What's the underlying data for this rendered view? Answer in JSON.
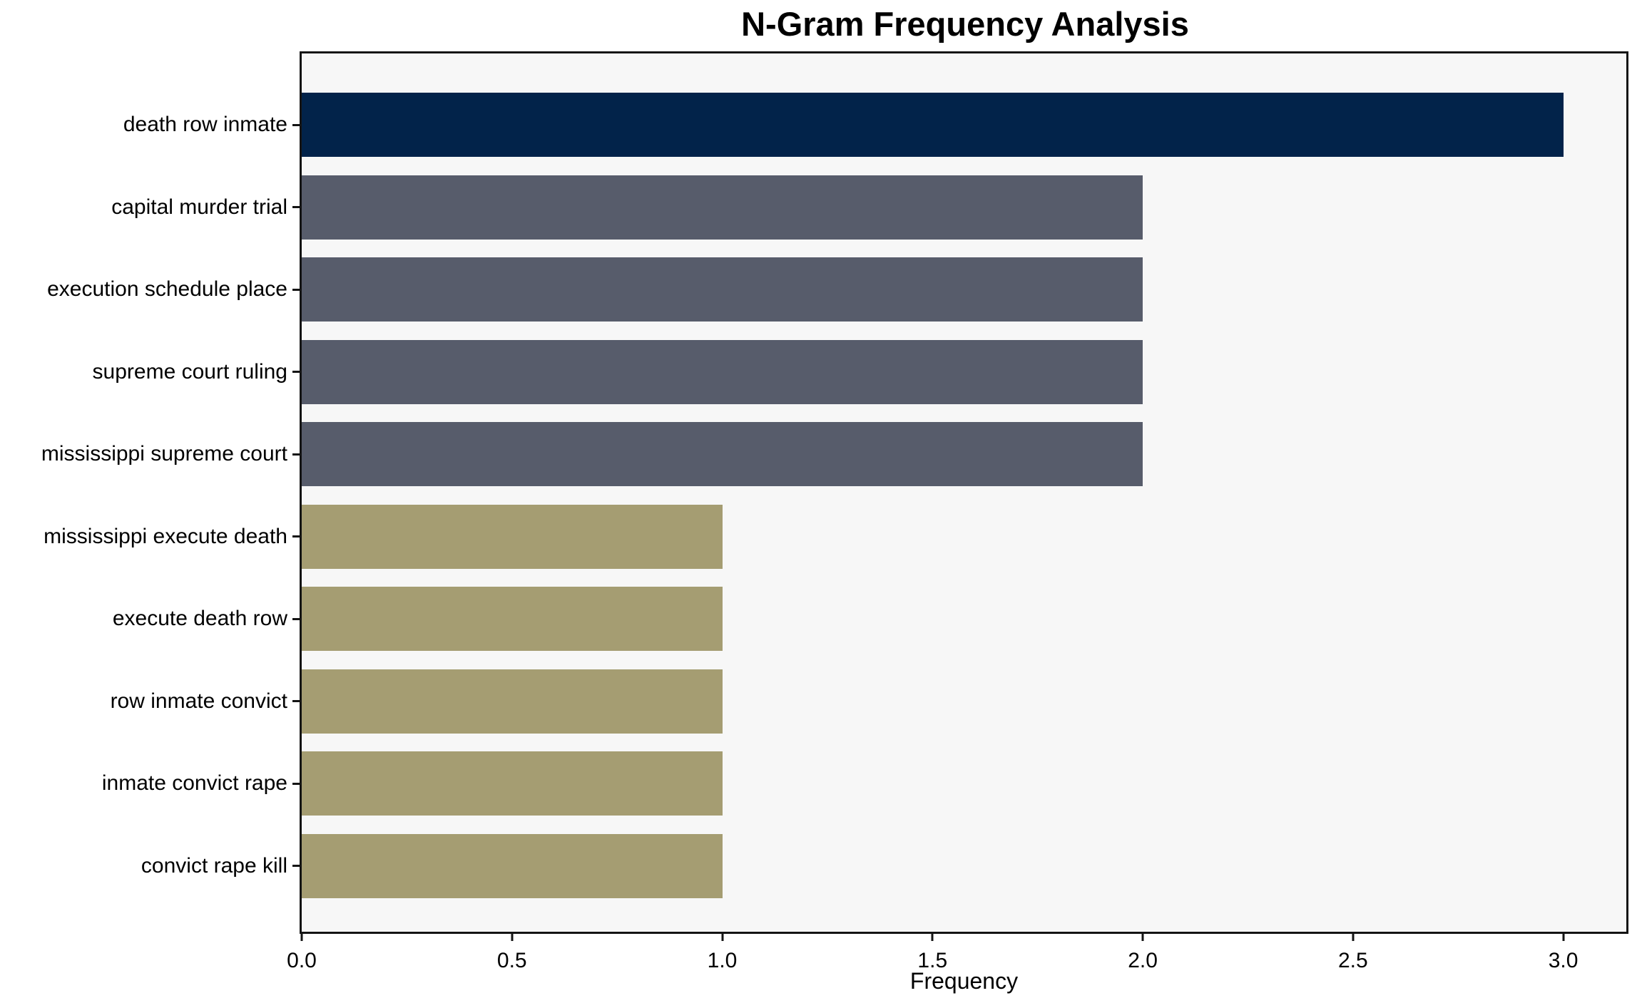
{
  "chart_data": {
    "type": "bar",
    "orientation": "horizontal",
    "title": "N-Gram Frequency Analysis",
    "xlabel": "Frequency",
    "ylabel": "",
    "categories": [
      "death row inmate",
      "capital murder trial",
      "execution schedule place",
      "supreme court ruling",
      "mississippi supreme court",
      "mississippi execute death",
      "execute death row",
      "row inmate convict",
      "inmate convict rape",
      "convict rape kill"
    ],
    "values": [
      3,
      2,
      2,
      2,
      2,
      1,
      1,
      1,
      1,
      1
    ],
    "bar_colors": [
      "#02234a",
      "#575c6b",
      "#575c6b",
      "#575c6b",
      "#575c6b",
      "#a59d72",
      "#a59d72",
      "#a59d72",
      "#a59d72",
      "#a59d72"
    ],
    "xlim": [
      0,
      3.15
    ],
    "x_ticks": [
      0.0,
      0.5,
      1.0,
      1.5,
      2.0,
      2.5,
      3.0
    ],
    "x_tick_labels": [
      "0.0",
      "0.5",
      "1.0",
      "1.5",
      "2.0",
      "2.5",
      "3.0"
    ],
    "grid": false,
    "legend": "none",
    "plot_background": "#f7f7f7",
    "figure_background": "#ffffff"
  }
}
